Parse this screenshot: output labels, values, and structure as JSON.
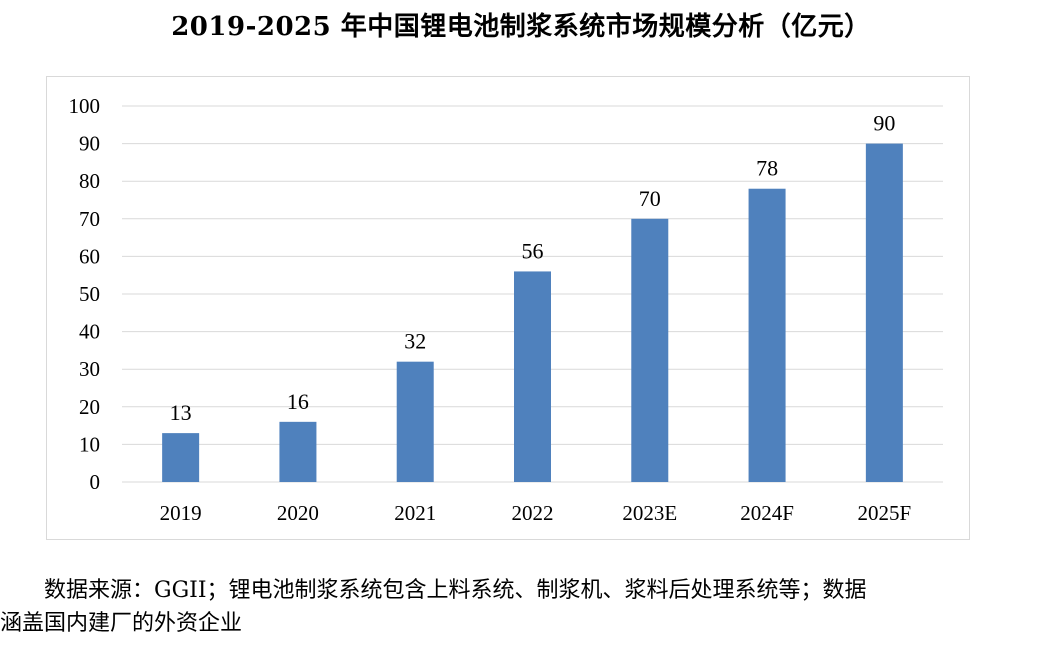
{
  "title": "2019-2025 年中国锂电池制浆系统市场规模分析（亿元）",
  "chart_data": {
    "type": "bar",
    "categories": [
      "2019",
      "2020",
      "2021",
      "2022",
      "2023E",
      "2024F",
      "2025F"
    ],
    "values": [
      13,
      16,
      32,
      56,
      70,
      78,
      90
    ],
    "ylim": [
      0,
      100
    ],
    "yticks": [
      0,
      10,
      20,
      30,
      40,
      50,
      60,
      70,
      80,
      90,
      100
    ],
    "data_labels": true,
    "grid": true,
    "bar_color": "#4f81bd",
    "grid_color": "#d9d9d9"
  },
  "footnote": {
    "line1": "数据来源：GGII；锂电池制浆系统包含上料系统、制浆机、浆料后处理系统等；数据",
    "line2": "涵盖国内建厂的外资企业"
  }
}
